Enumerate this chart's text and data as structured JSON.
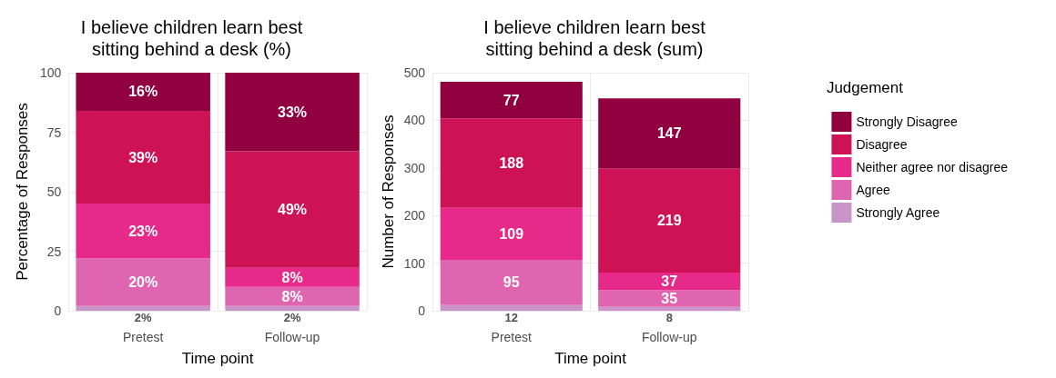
{
  "chart_data": [
    {
      "type": "bar",
      "stacked": true,
      "title": "I believe children learn best\nsitting behind a desk (%)",
      "xlabel": "Time point",
      "ylabel": "Percentage of Responses",
      "categories": [
        "Pretest",
        "Follow-up"
      ],
      "ylim": [
        0,
        100
      ],
      "yticks": [
        0,
        25,
        50,
        75,
        100
      ],
      "grid": true,
      "series": [
        {
          "color": "#c994c7",
          "values": [
            2,
            2
          ],
          "value_labels": [
            "2%",
            "2%"
          ]
        },
        {
          "color": "#df65b0",
          "values": [
            20,
            8
          ],
          "value_labels": [
            "20%",
            "8%"
          ]
        },
        {
          "color": "#e7298a",
          "values": [
            23,
            8
          ],
          "value_labels": [
            "23%",
            "8%"
          ]
        },
        {
          "color": "#ce1256",
          "values": [
            39,
            49
          ],
          "value_labels": [
            "39%",
            "49%"
          ]
        },
        {
          "color": "#91003f",
          "values": [
            16,
            33
          ],
          "value_labels": [
            "16%",
            "33%"
          ]
        }
      ]
    },
    {
      "type": "bar",
      "stacked": true,
      "title": "I believe children learn best\nsitting behind a desk (sum)",
      "xlabel": "Time point",
      "ylabel": "Number of Responses",
      "legend_title": "Judgement",
      "legend": "right",
      "categories": [
        "Pretest",
        "Follow-up"
      ],
      "ylim": [
        0,
        500
      ],
      "yticks": [
        0,
        100,
        200,
        300,
        400,
        500
      ],
      "grid": true,
      "data_labels": true,
      "series": [
        {
          "name": "Strongly Agree",
          "color": "#c994c7",
          "values": [
            12,
            8
          ]
        },
        {
          "name": "Agree",
          "color": "#df65b0",
          "values": [
            95,
            35
          ]
        },
        {
          "name": "Neither agree nor disagree",
          "color": "#e7298a",
          "values": [
            109,
            37
          ]
        },
        {
          "name": "Disagree",
          "color": "#ce1256",
          "values": [
            188,
            219
          ]
        },
        {
          "name": "Strongly Disagree",
          "color": "#91003f",
          "values": [
            77,
            147
          ]
        }
      ]
    }
  ]
}
